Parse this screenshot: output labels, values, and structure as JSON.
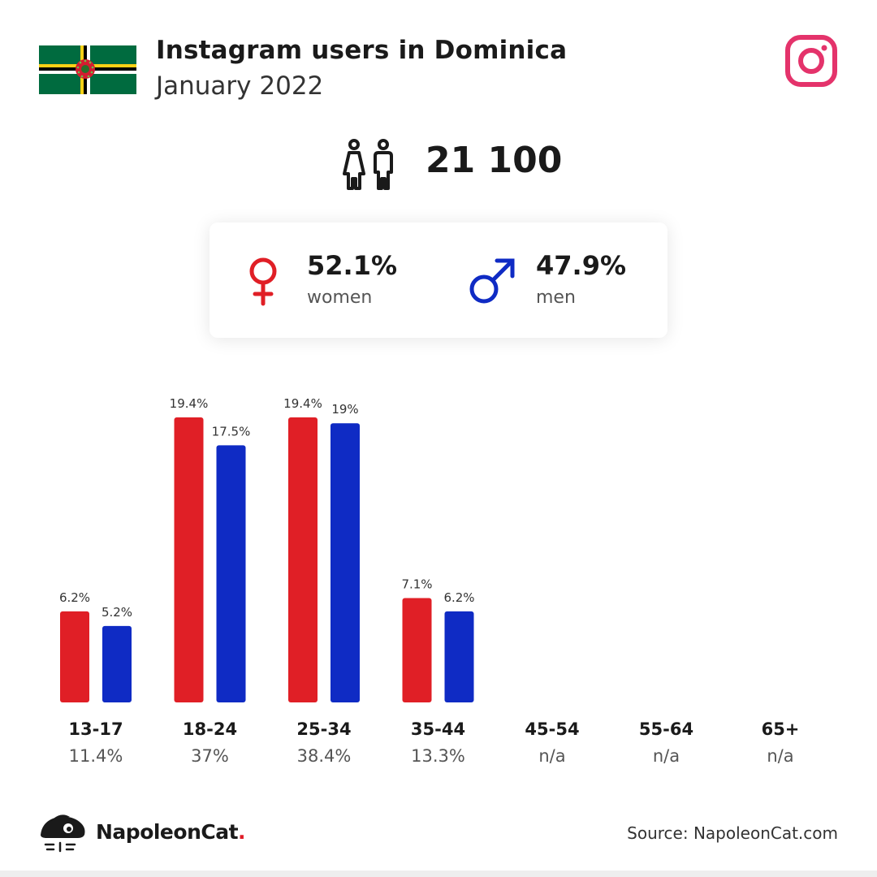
{
  "header": {
    "title": "Instagram users in Dominica",
    "subtitle": "January 2022"
  },
  "total_users": "21 100",
  "gender": {
    "women": {
      "percent": "52.1%",
      "label": "women"
    },
    "men": {
      "percent": "47.9%",
      "label": "men"
    }
  },
  "colors": {
    "women": "#e01f26",
    "men": "#0f2bc4",
    "instagram": "#e4336b"
  },
  "icons": [
    "dominica-flag",
    "instagram-icon",
    "users-icon",
    "female-icon",
    "male-icon",
    "napoleoncat-logo"
  ],
  "chart_data": {
    "type": "bar",
    "categories": [
      "13-17",
      "18-24",
      "25-34",
      "35-44",
      "45-54",
      "55-64",
      "65+"
    ],
    "totals": [
      "11.4%",
      "37%",
      "38.4%",
      "13.3%",
      "n/a",
      "n/a",
      "n/a"
    ],
    "series": [
      {
        "name": "women",
        "values": [
          6.2,
          19.4,
          19.4,
          7.1,
          null,
          null,
          null
        ],
        "labels": [
          "6.2%",
          "19.4%",
          "19.4%",
          "7.1%",
          "",
          "",
          ""
        ]
      },
      {
        "name": "men",
        "values": [
          5.2,
          17.5,
          19,
          6.2,
          null,
          null,
          null
        ],
        "labels": [
          "5.2%",
          "17.5%",
          "19%",
          "6.2%",
          "",
          "",
          ""
        ]
      }
    ],
    "ylim": [
      0,
      19.4
    ],
    "grid": false
  },
  "footer": {
    "brand_name": "NapoleonCat",
    "brand_dot": ".",
    "source": "Source: NapoleonCat.com"
  }
}
